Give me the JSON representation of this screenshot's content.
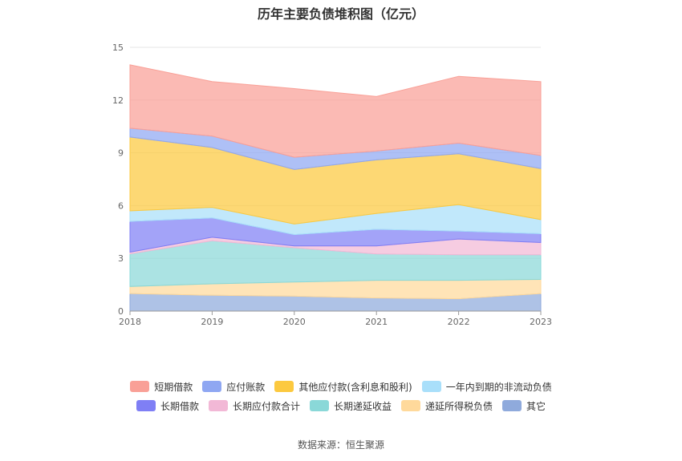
{
  "chart_data": {
    "type": "area",
    "title": "历年主要负债堆积图（亿元）",
    "stacked": true,
    "x": [
      "2018",
      "2019",
      "2020",
      "2021",
      "2022",
      "2023"
    ],
    "ylim": [
      0,
      15
    ],
    "yticks": [
      0,
      3,
      6,
      9,
      12,
      15
    ],
    "grid": true,
    "legend_position": "bottom",
    "series": [
      {
        "name": "其它",
        "color": "#8faadc",
        "values": [
          1.0,
          0.9,
          0.85,
          0.75,
          0.7,
          1.0
        ]
      },
      {
        "name": "递延所得税负债",
        "color": "#ffd99b",
        "values": [
          0.4,
          0.65,
          0.8,
          1.0,
          1.05,
          0.8
        ]
      },
      {
        "name": "长期递延收益",
        "color": "#8ad8d8",
        "values": [
          1.85,
          2.45,
          1.95,
          1.5,
          1.45,
          1.4
        ]
      },
      {
        "name": "长期应付款合计",
        "color": "#f2b8d6",
        "values": [
          0.1,
          0.2,
          0.1,
          0.45,
          0.9,
          0.7
        ]
      },
      {
        "name": "长期借款",
        "color": "#7f7ff5",
        "values": [
          1.75,
          1.1,
          0.65,
          0.95,
          0.45,
          0.5
        ]
      },
      {
        "name": "一年内到期的非流动负债",
        "color": "#a9dffa",
        "values": [
          0.6,
          0.6,
          0.6,
          0.9,
          1.5,
          0.8
        ]
      },
      {
        "name": "其他应付款(含利息和股利)",
        "color": "#fcc93f",
        "values": [
          4.2,
          3.4,
          3.1,
          3.05,
          2.9,
          2.9
        ]
      },
      {
        "name": "应付账款",
        "color": "#8fa7f2",
        "values": [
          0.5,
          0.65,
          0.7,
          0.5,
          0.6,
          0.75
        ]
      },
      {
        "name": "短期借款",
        "color": "#f9a097",
        "values": [
          3.6,
          3.1,
          3.9,
          3.1,
          3.8,
          4.2
        ]
      }
    ],
    "legend_order": [
      "短期借款",
      "应付账款",
      "其他应付款(含利息和股利)",
      "一年内到期的非流动负债",
      "长期借款",
      "长期应付款合计",
      "长期递延收益",
      "递延所得税负债",
      "其它"
    ]
  },
  "source": "数据来源：恒生聚源"
}
